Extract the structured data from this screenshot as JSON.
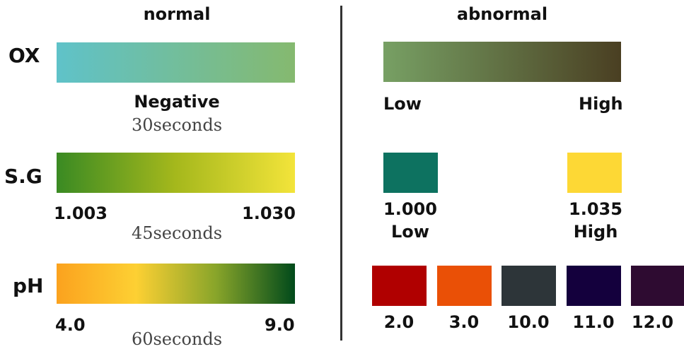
{
  "headers": {
    "normal": "normal",
    "abnormal": "abnormal"
  },
  "rows": {
    "ox": {
      "label": "OX",
      "normal": {
        "label": "Negative",
        "time": "30seconds",
        "gradient": [
          "#5fc2c9",
          "#85b96f"
        ]
      },
      "abnormal": {
        "low": "Low",
        "high": "High",
        "gradient": [
          "#77a064",
          "#4a3f22"
        ]
      }
    },
    "sg": {
      "label": "S.G",
      "normal": {
        "min": "1.003",
        "max": "1.030",
        "time": "45seconds",
        "gradient": [
          "#3a8a23",
          "#a5b81c",
          "#f3e43a"
        ]
      },
      "abnormal": {
        "low": {
          "value": "1.000",
          "label": "Low",
          "color": "#0d7260"
        },
        "high": {
          "value": "1.035",
          "label": "High",
          "color": "#fdd835"
        }
      }
    },
    "ph": {
      "label": "pH",
      "normal": {
        "min": "4.0",
        "max": "9.0",
        "time": "60seconds",
        "gradient": [
          "#fba21e",
          "#fdd033",
          "#89a52a",
          "#014a1b"
        ]
      },
      "abnormal": {
        "swatches": [
          {
            "value": "2.0",
            "color": "#b00000"
          },
          {
            "value": "3.0",
            "color": "#ea5006"
          },
          {
            "value": "10.0",
            "color": "#2d3539"
          },
          {
            "value": "11.0",
            "color": "#14003d"
          },
          {
            "value": "12.0",
            "color": "#2e0b31"
          }
        ]
      }
    }
  }
}
